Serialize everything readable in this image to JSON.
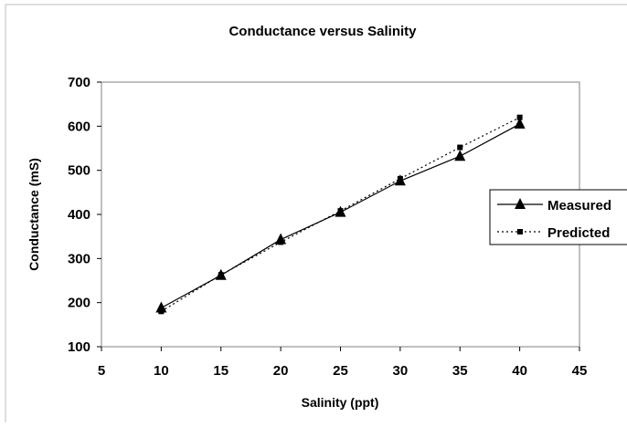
{
  "chart_data": {
    "type": "line",
    "title": "Conductance versus Salinity",
    "xlabel": "Salinity (ppt)",
    "ylabel": "Conductance (mS)",
    "xlim": [
      5,
      45
    ],
    "ylim": [
      100,
      700
    ],
    "xticks": [
      5,
      10,
      15,
      20,
      25,
      30,
      35,
      40,
      45
    ],
    "yticks": [
      100,
      200,
      300,
      400,
      500,
      600,
      700
    ],
    "grid": false,
    "legend_position": "right",
    "series": [
      {
        "name": "Measured",
        "style": "solid",
        "marker": "triangle",
        "color": "#000000",
        "x": [
          10,
          15,
          20,
          25,
          30,
          35,
          40
        ],
        "y": [
          188,
          262,
          343,
          405,
          476,
          532,
          605
        ]
      },
      {
        "name": "Predicted",
        "style": "dotted",
        "marker": "square",
        "color": "#000000",
        "x": [
          10,
          15,
          20,
          25,
          30,
          35,
          40
        ],
        "y": [
          180,
          263,
          337,
          408,
          481,
          552,
          620
        ]
      }
    ]
  }
}
